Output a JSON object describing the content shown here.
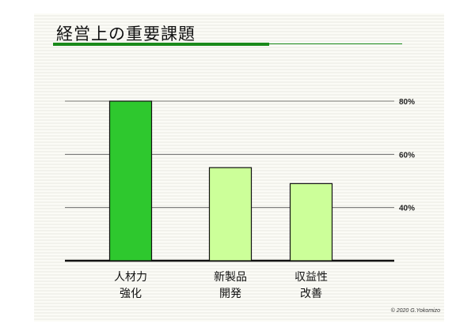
{
  "slide": {
    "title": "経営上の重要課題",
    "copyright": "© 2020 G.Yokomizo"
  },
  "chart_data": {
    "type": "bar",
    "categories": [
      [
        "人材力",
        "強化"
      ],
      [
        "新製品",
        "開発"
      ],
      [
        "収益性",
        "改善"
      ]
    ],
    "values": [
      80,
      55,
      49
    ],
    "colors": [
      "#2ec82e",
      "#ccff99",
      "#ccff99"
    ],
    "ylim": [
      20,
      80
    ],
    "yticks": [
      40,
      60,
      80
    ],
    "ytick_labels": [
      "40%",
      "60%",
      "80%"
    ],
    "grid": true,
    "title": "",
    "xlabel": "",
    "ylabel": ""
  }
}
